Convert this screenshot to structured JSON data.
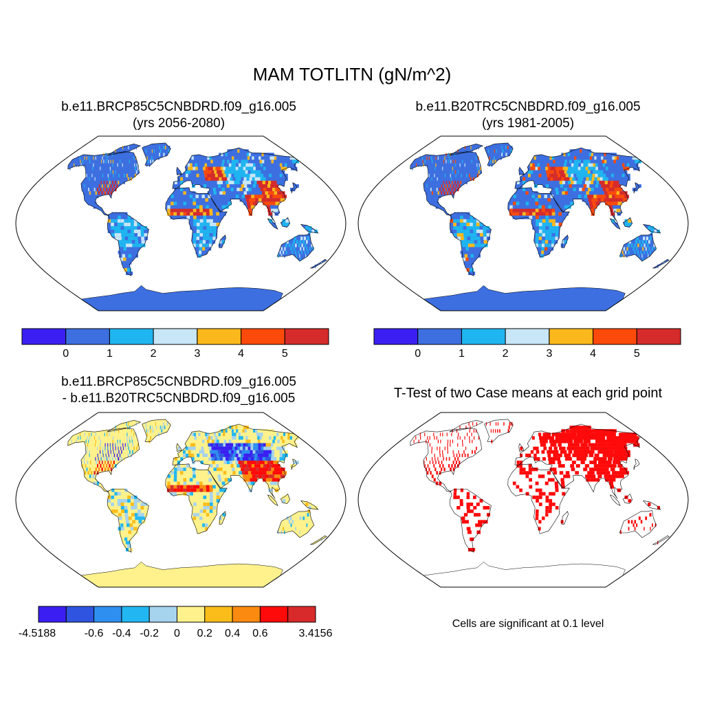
{
  "title": "MAM TOTLITN (gN/m^2)",
  "panels": [
    {
      "id": "case1",
      "title_line1": "b.e11.BRCP85C5CNBDRD.f09_g16.005",
      "title_line2": "(yrs 2056-2080)"
    },
    {
      "id": "case2",
      "title_line1": "b.e11.B20TRC5CNBDRD.f09_g16.005",
      "title_line2": "(yrs 1981-2005)"
    },
    {
      "id": "diff",
      "title_line1": "b.e11.BRCP85C5CNBDRD.f09_g16.005",
      "title_line2": "- b.e11.B20TRC5CNBDRD.f09_g16.005"
    },
    {
      "id": "ttest",
      "title_line1": "T-Test of two Case means at each grid point"
    }
  ],
  "colorbar_case": {
    "colors": [
      "#3b1ff2",
      "#3d6fe0",
      "#1fb5f0",
      "#c7e6f7",
      "#fbb81c",
      "#fb4a0a",
      "#d52b2b"
    ],
    "labels": [
      "0",
      "1",
      "2",
      "3",
      "4",
      "5"
    ]
  },
  "colorbar_diff": {
    "colors": [
      "#3b1ff2",
      "#2f55e0",
      "#2f8ff0",
      "#22b7f2",
      "#a6d3ee",
      "#fff28c",
      "#fbbd1a",
      "#fb8a10",
      "#ff0a0a",
      "#d82a2a"
    ],
    "labels": [
      "-4.5188",
      "-0.6",
      "-0.4",
      "-0.2",
      "0",
      "0.2",
      "0.4",
      "0.6",
      "3.4156"
    ]
  },
  "colors": {
    "ocean": "#ffffff",
    "case_land_base": "#3d6fe0",
    "case_land_light": "#1fb5f0",
    "diff_land_base": "#fff28c",
    "antarctica_case": "#3d6fe0",
    "antarctica_diff": "#fff28c",
    "significant": "#ff0a0a"
  },
  "significance_note": "Cells are significant at 0.1 level"
}
